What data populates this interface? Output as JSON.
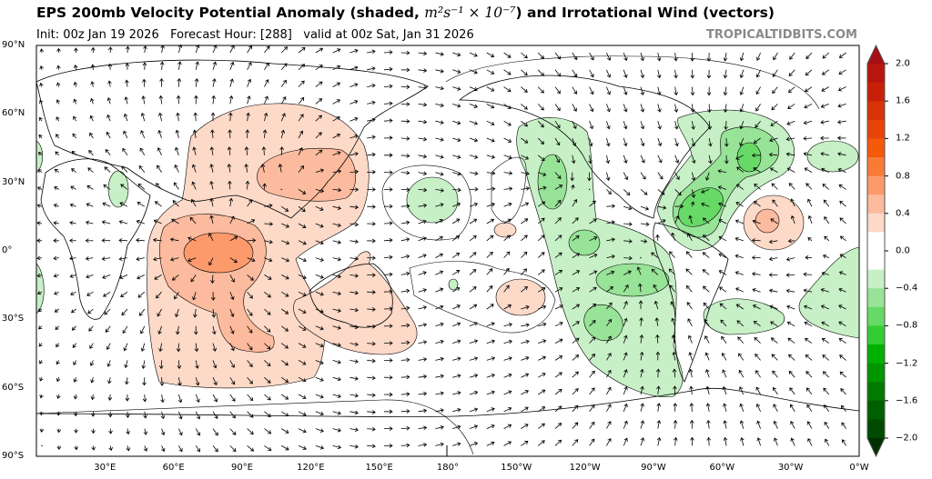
{
  "header": {
    "title_pre": "EPS 200mb Velocity Potential Anomaly (shaded, ",
    "title_units": "m²s⁻¹ × 10⁻⁷",
    "title_post": ") and Irrotational Wind (vectors)",
    "init": "Init: 00z Jan 19 2026",
    "forecast_hour": "Forecast Hour: [288]",
    "valid": "valid at 00z Sat, Jan 31 2026",
    "brand": "TROPICALTIDBITS.COM"
  },
  "axes": {
    "lat_labels": [
      "90°N",
      "60°N",
      "30°N",
      "0°",
      "30°S",
      "60°S",
      "90°S"
    ],
    "lon_labels": [
      "30°E",
      "60°E",
      "90°E",
      "120°E",
      "150°E",
      "180°",
      "150°W",
      "120°W",
      "90°W",
      "60°W",
      "30°W",
      "0°W"
    ]
  },
  "colorbar": {
    "tick_labels": [
      "2.0",
      "1.6",
      "1.2",
      "0.8",
      "0.4",
      "0.0",
      "−0.4",
      "−0.8",
      "−1.2",
      "−1.6",
      "−2.0"
    ],
    "colors": [
      "#a50f15",
      "#b81410",
      "#c82008",
      "#d83208",
      "#e8440a",
      "#f45a0a",
      "#f97b35",
      "#fc9a6c",
      "#fcbb9e",
      "#fdd9c8",
      "#ffffff",
      "#ffffff",
      "#c7f0c6",
      "#97e397",
      "#67d967",
      "#32cd32",
      "#00b000",
      "#009600",
      "#007a00",
      "#006000",
      "#004a00",
      "#003000"
    ]
  }
}
